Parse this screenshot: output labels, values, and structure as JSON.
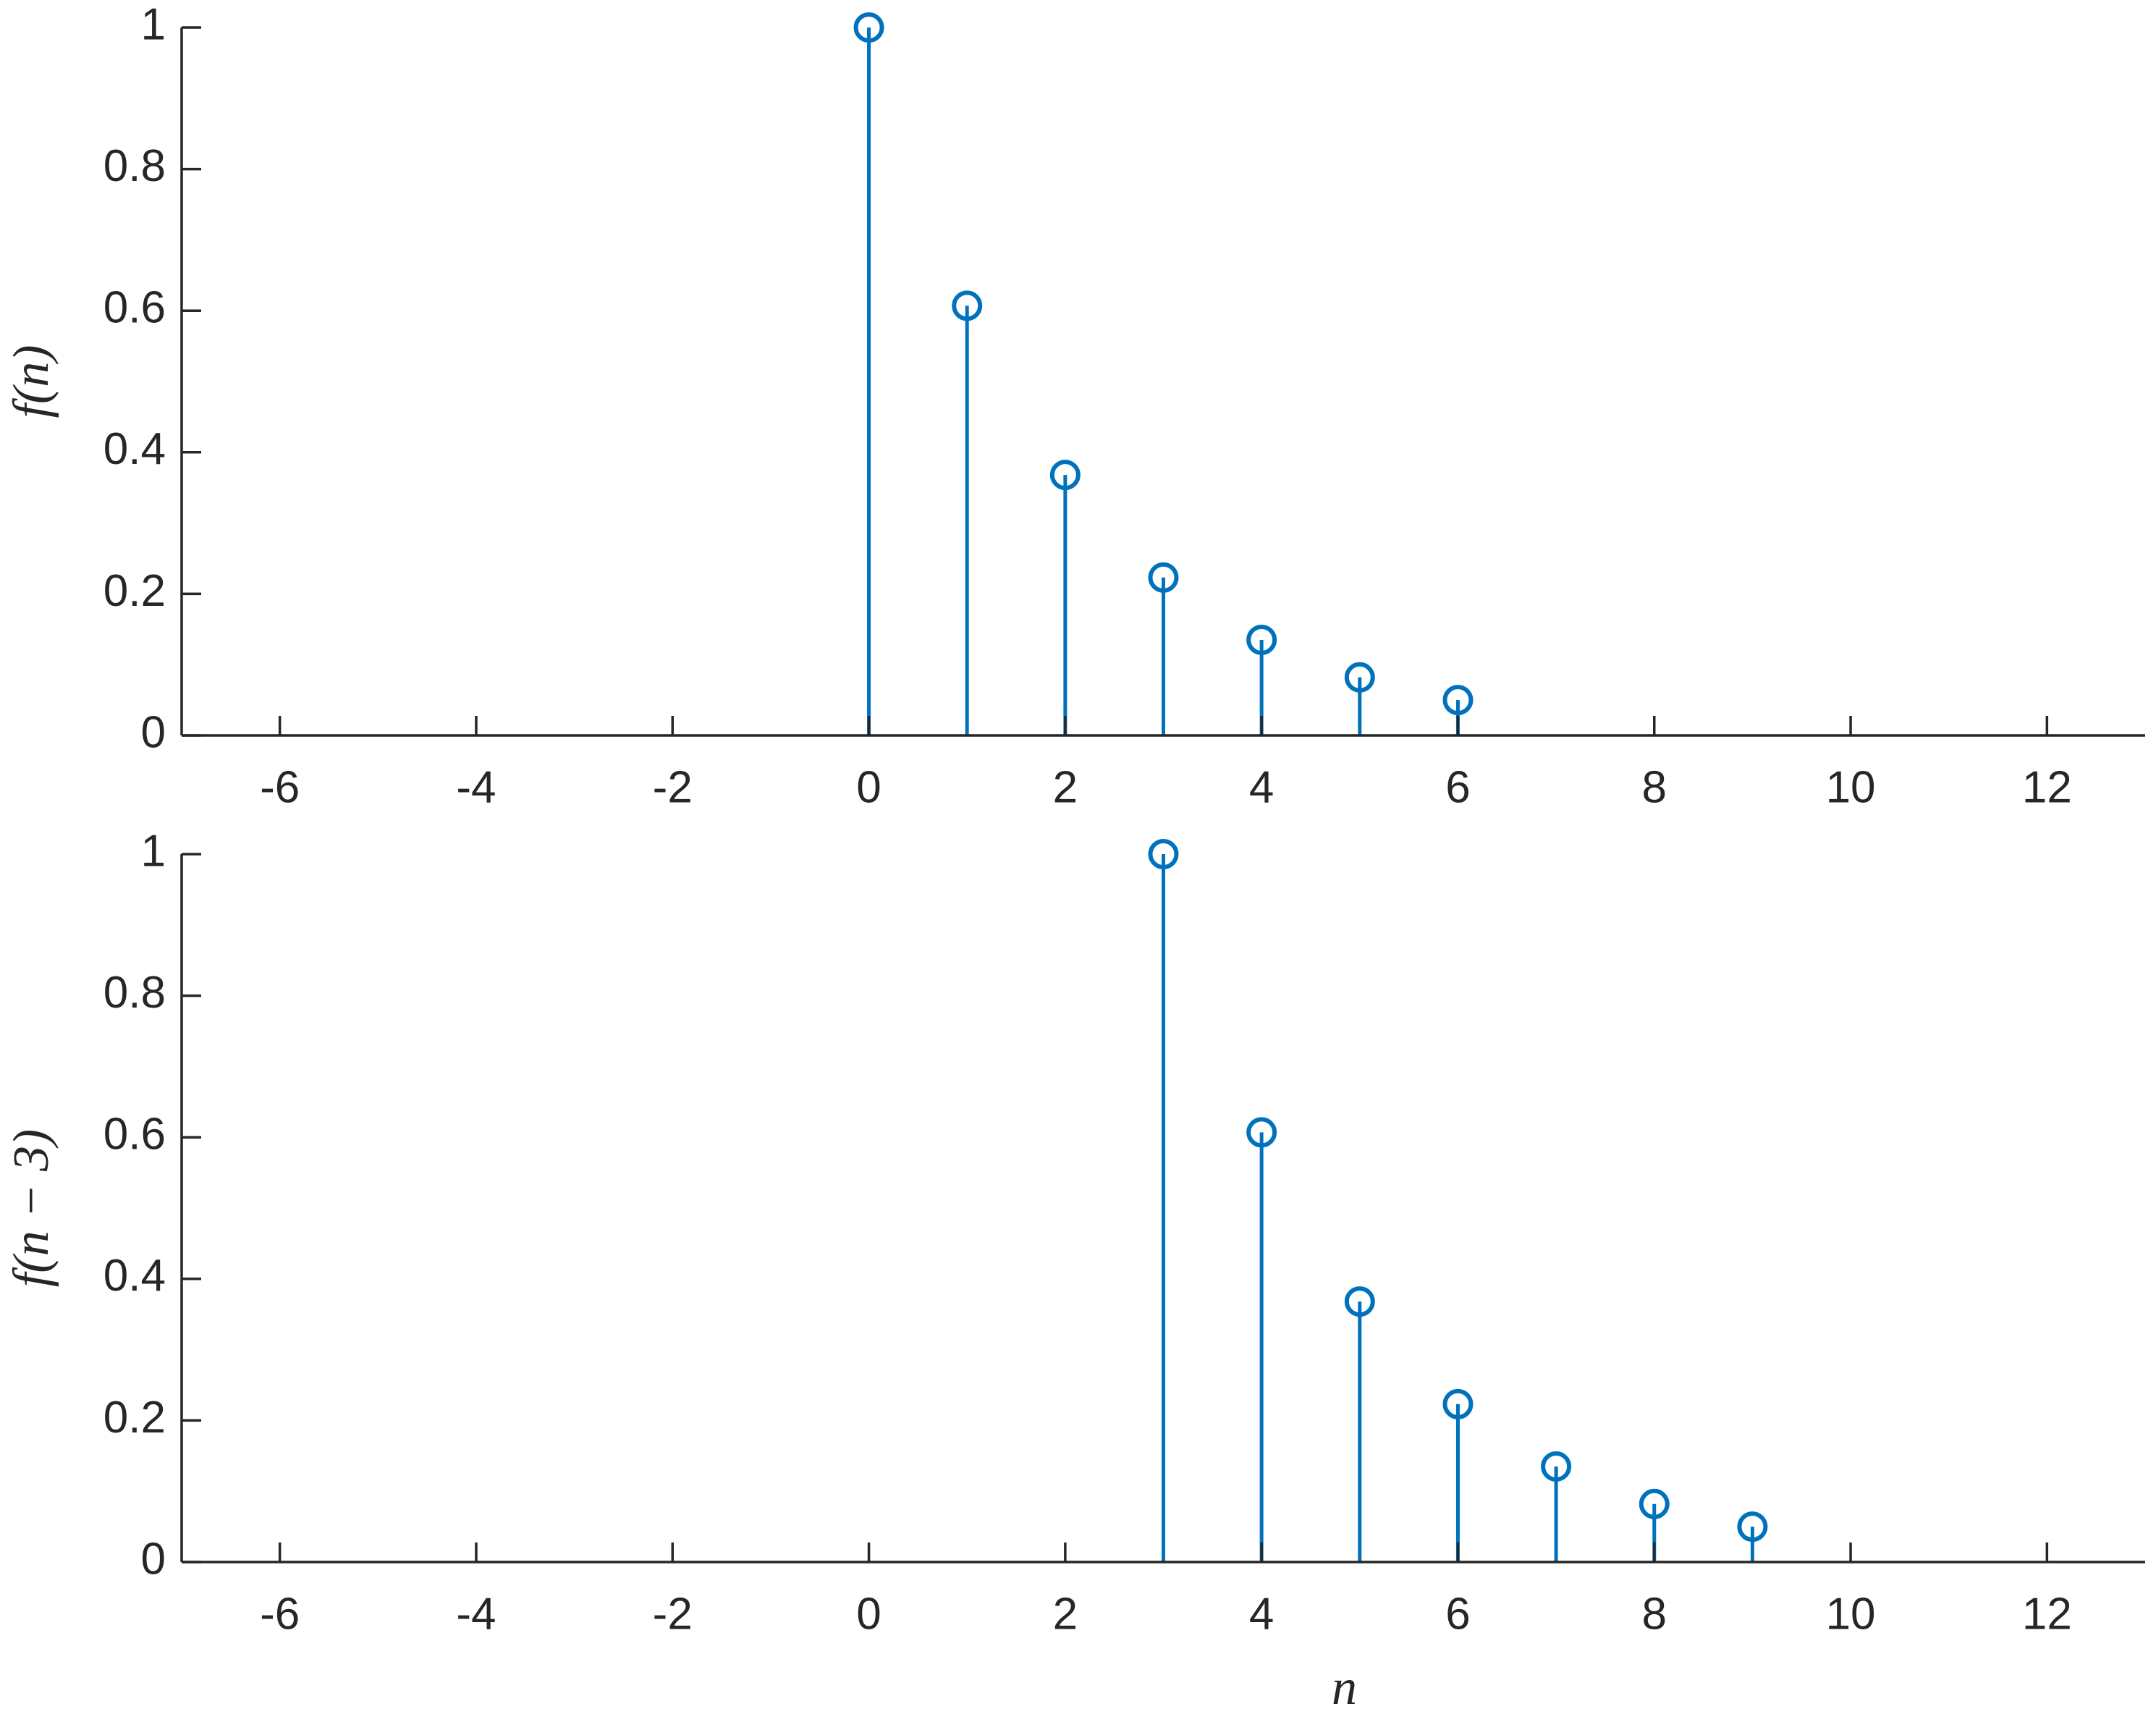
{
  "chart_data": [
    {
      "type": "stem",
      "ylabel": "f(n)",
      "color": "#0072bd",
      "x": [
        0,
        1,
        2,
        3,
        4,
        5,
        6
      ],
      "values": [
        1,
        0.607,
        0.368,
        0.223,
        0.135,
        0.082,
        0.05
      ],
      "xlim": [
        -7,
        13
      ],
      "ylim": [
        0,
        1
      ],
      "xticks": [
        -6,
        -4,
        -2,
        0,
        2,
        4,
        6,
        8,
        10,
        12
      ],
      "yticks": [
        0,
        0.2,
        0.4,
        0.6,
        0.8,
        1
      ]
    },
    {
      "type": "stem",
      "ylabel": "f(n − 3)",
      "xlabel": "n",
      "color": "#0072bd",
      "x": [
        3,
        4,
        5,
        6,
        7,
        8,
        9
      ],
      "values": [
        1,
        0.607,
        0.368,
        0.223,
        0.135,
        0.082,
        0.05
      ],
      "xlim": [
        -7,
        13
      ],
      "ylim": [
        0,
        1
      ],
      "xticks": [
        -6,
        -4,
        -2,
        0,
        2,
        4,
        6,
        8,
        10,
        12
      ],
      "yticks": [
        0,
        0.2,
        0.4,
        0.6,
        0.8,
        1
      ]
    }
  ]
}
